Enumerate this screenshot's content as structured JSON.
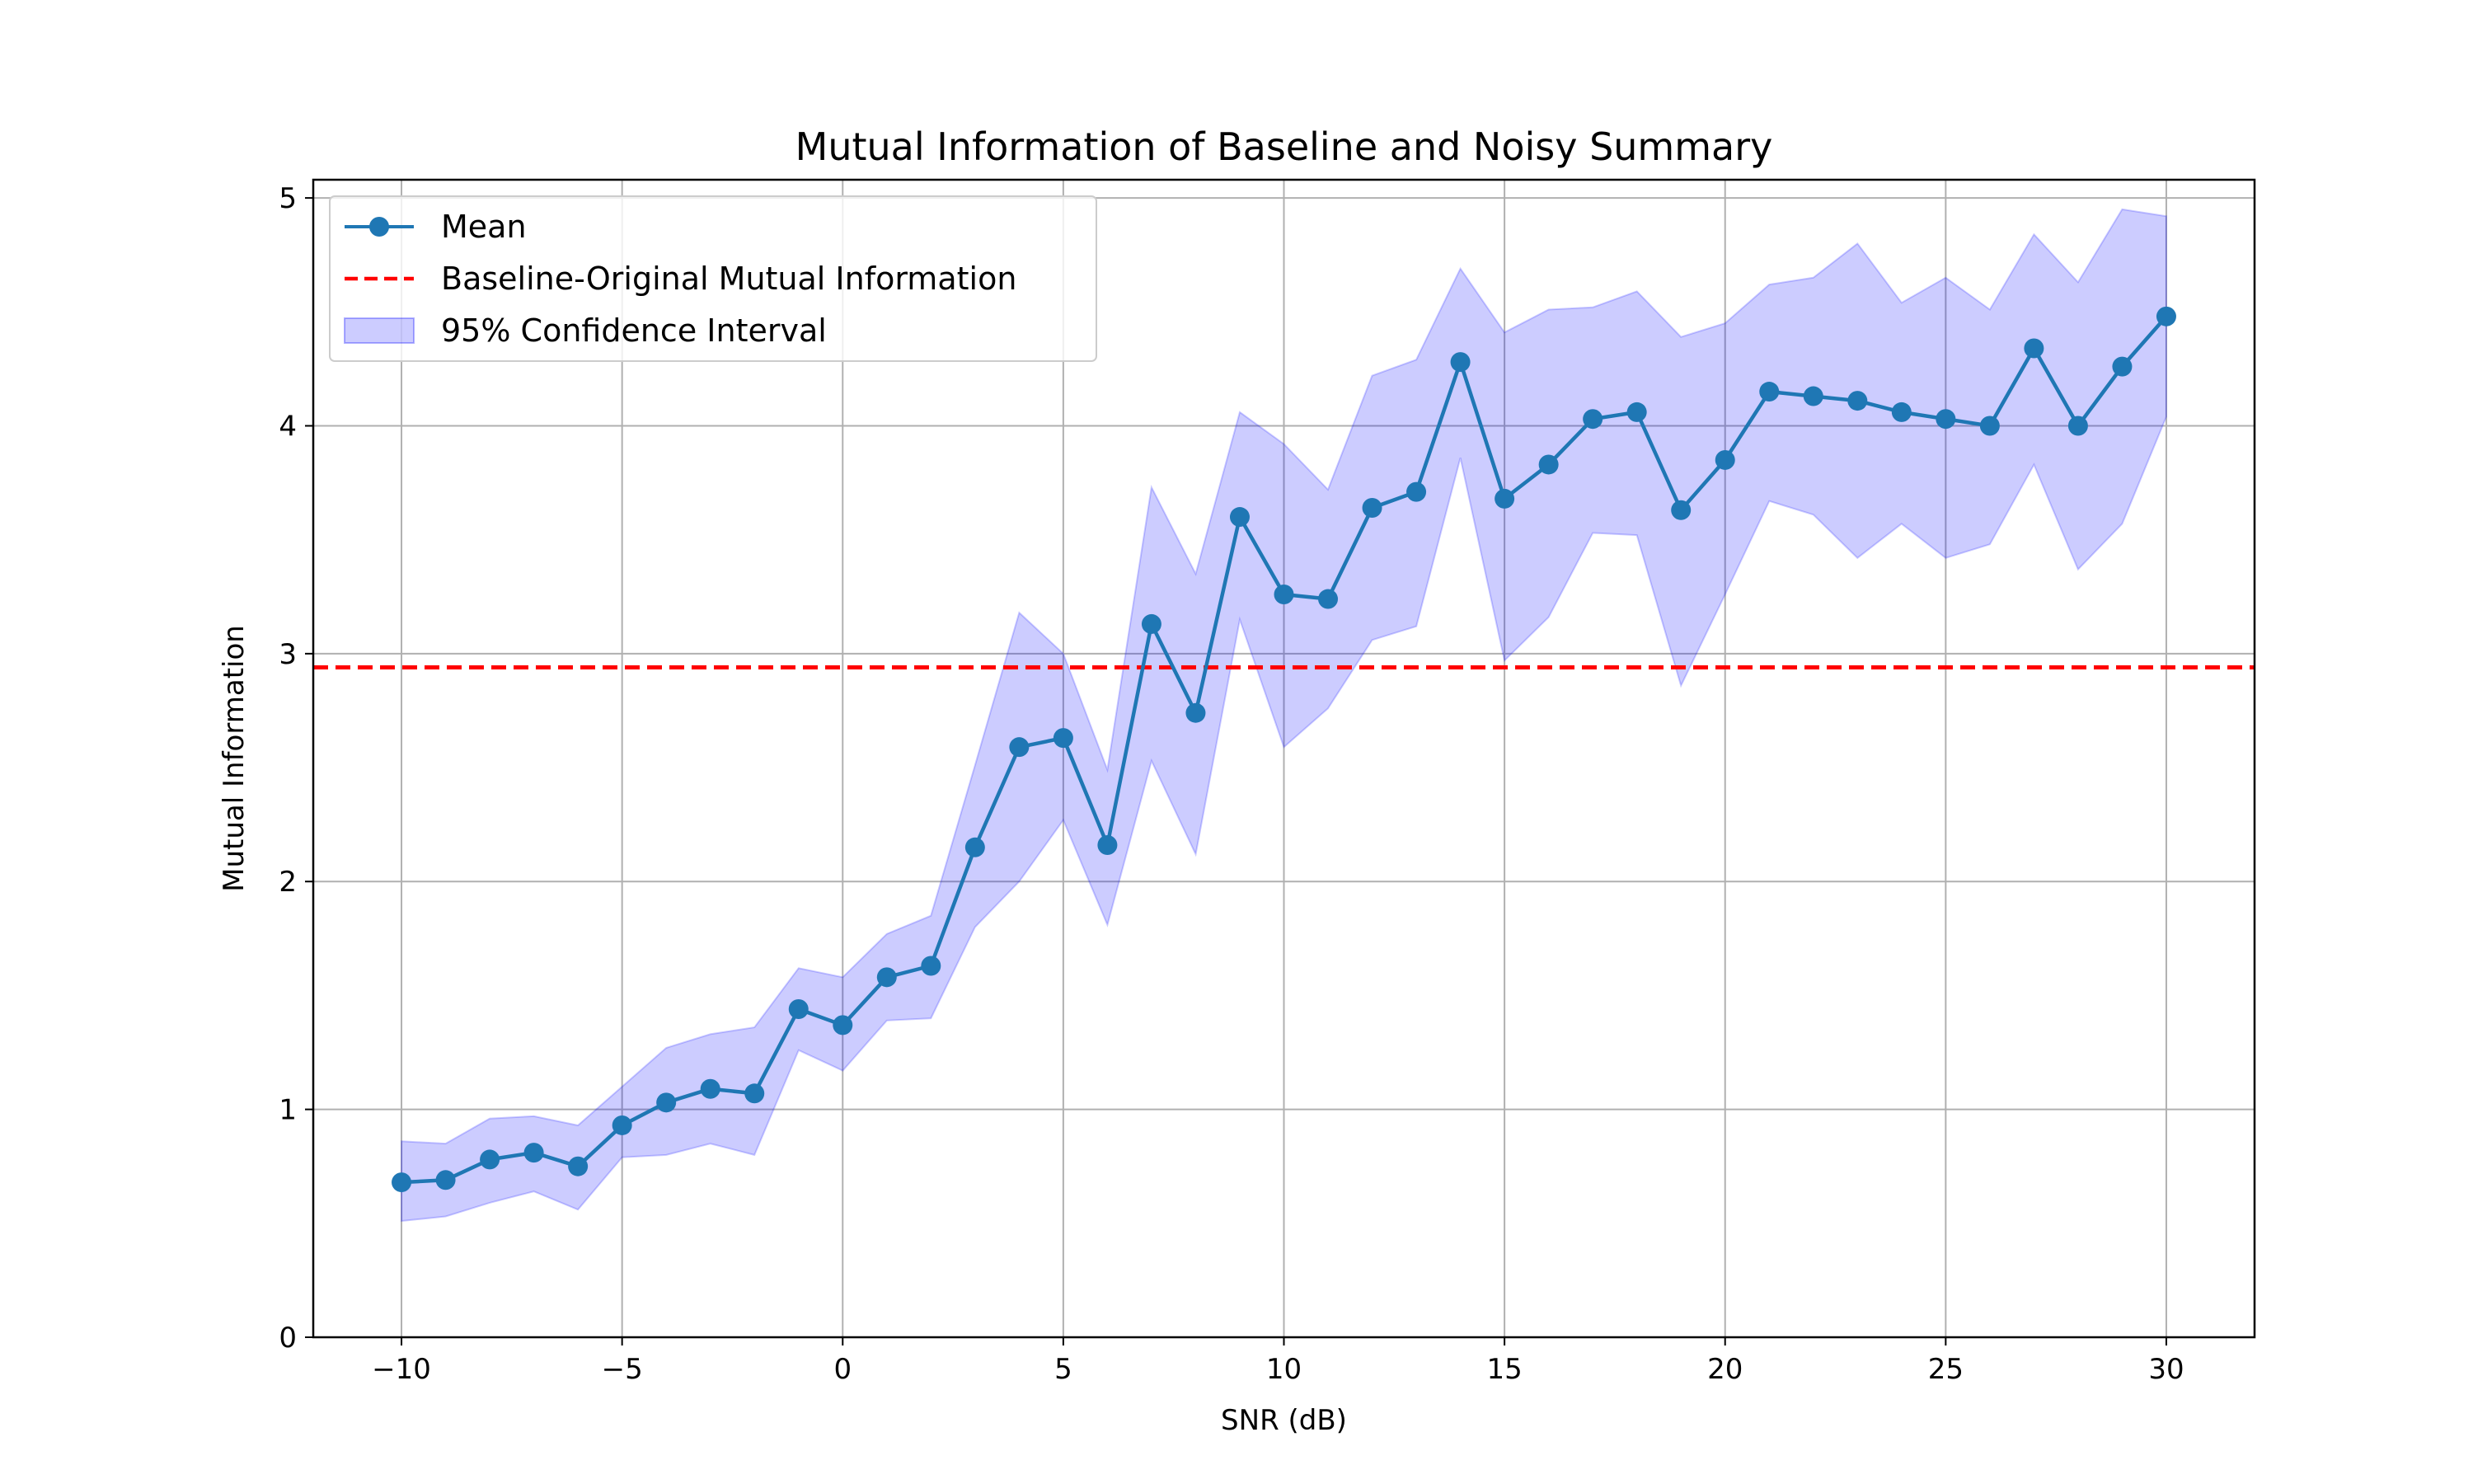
{
  "chart_data": {
    "type": "line",
    "title": "Mutual Information of Baseline and Noisy Summary",
    "xlabel": "SNR (dB)",
    "ylabel": "Mutual Information",
    "xlim": [
      -12,
      32
    ],
    "ylim": [
      0,
      5.08
    ],
    "xticks": [
      -10,
      -5,
      0,
      5,
      10,
      15,
      20,
      25,
      30
    ],
    "xtick_labels": [
      "−10",
      "−5",
      "0",
      "5",
      "10",
      "15",
      "20",
      "25",
      "30"
    ],
    "yticks": [
      0,
      1,
      2,
      3,
      4,
      5
    ],
    "ytick_labels": [
      "0",
      "1",
      "2",
      "3",
      "4",
      "5"
    ],
    "grid": true,
    "legend_position": "top-left",
    "x": [
      -10,
      -9,
      -8,
      -7,
      -6,
      -5,
      -4,
      -3,
      -2,
      -1,
      0,
      1,
      2,
      3,
      4,
      5,
      6,
      7,
      8,
      9,
      10,
      11,
      12,
      13,
      14,
      15,
      16,
      17,
      18,
      19,
      20,
      21,
      22,
      23,
      24,
      25,
      26,
      27,
      28,
      29,
      30
    ],
    "series": [
      {
        "name": "Mean",
        "kind": "line-marker",
        "color": "#1f77b4",
        "values": [
          0.68,
          0.69,
          0.78,
          0.81,
          0.75,
          0.93,
          1.03,
          1.09,
          1.07,
          1.44,
          1.37,
          1.58,
          1.63,
          2.15,
          2.59,
          2.63,
          2.16,
          3.13,
          2.74,
          3.6,
          3.26,
          3.24,
          3.64,
          3.71,
          4.28,
          3.68,
          3.83,
          4.03,
          4.06,
          3.63,
          3.85,
          4.15,
          4.13,
          4.11,
          4.06,
          4.03,
          4.0,
          4.34,
          4.0,
          4.26,
          4.48
        ]
      },
      {
        "name": "Baseline-Original Mutual Information",
        "kind": "hline",
        "color": "#ff0000",
        "value": 2.94
      },
      {
        "name": "95% Confidence Interval",
        "kind": "band",
        "color": "#0000ff",
        "lower": [
          0.51,
          0.53,
          0.59,
          0.64,
          0.56,
          0.79,
          0.8,
          0.85,
          0.8,
          1.26,
          1.17,
          1.39,
          1.4,
          1.8,
          2.0,
          2.27,
          1.81,
          2.53,
          2.12,
          3.15,
          2.59,
          2.76,
          3.06,
          3.12,
          3.86,
          2.97,
          3.16,
          3.53,
          3.52,
          2.86,
          3.26,
          3.67,
          3.61,
          3.42,
          3.57,
          3.42,
          3.48,
          3.83,
          3.37,
          3.57,
          4.04
        ],
        "upper": [
          0.86,
          0.85,
          0.96,
          0.97,
          0.93,
          1.1,
          1.27,
          1.33,
          1.36,
          1.62,
          1.58,
          1.77,
          1.85,
          2.51,
          3.18,
          3.0,
          2.49,
          3.73,
          3.35,
          4.06,
          3.92,
          3.72,
          4.22,
          4.29,
          4.69,
          4.41,
          4.51,
          4.52,
          4.59,
          4.39,
          4.45,
          4.62,
          4.65,
          4.8,
          4.54,
          4.65,
          4.51,
          4.84,
          4.63,
          4.95,
          4.92
        ]
      }
    ]
  }
}
